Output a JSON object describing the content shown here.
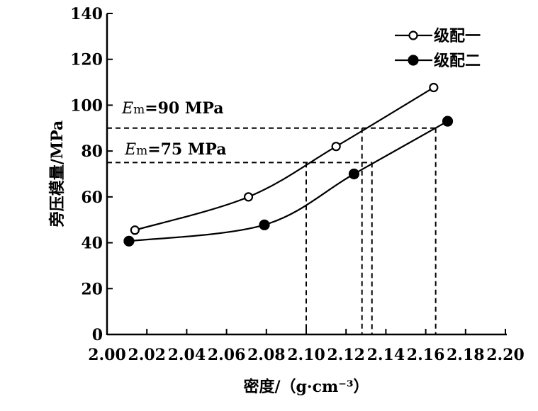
{
  "chart_data": {
    "type": "line",
    "title": "",
    "xlabel": "密度/（g·cm⁻³）",
    "ylabel": "旁压模量/MPa",
    "xlim": [
      2.0,
      2.2
    ],
    "ylim": [
      0,
      140
    ],
    "xticks": [
      "2.00",
      "2.02",
      "2.04",
      "2.06",
      "2.08",
      "2.10",
      "2.12",
      "2.14",
      "2.16",
      "2.18",
      "2.20"
    ],
    "yticks": [
      "0",
      "20",
      "40",
      "60",
      "80",
      "100",
      "120",
      "140"
    ],
    "grid": false,
    "legend_position": "top-right",
    "series": [
      {
        "name": "级配一",
        "marker": "open-circle",
        "x": [
          2.014,
          2.071,
          2.115,
          2.164
        ],
        "y": [
          45.5,
          60,
          82,
          107.7
        ]
      },
      {
        "name": "级配二",
        "marker": "filled-circle",
        "x": [
          2.011,
          2.079,
          2.124,
          2.171
        ],
        "y": [
          40.7,
          47.8,
          70,
          93
        ]
      }
    ],
    "reference_lines": [
      {
        "label_prefix": "E",
        "label_sub": "m",
        "label_value": "=90 MPa",
        "y": 90,
        "x_intersections": [
          2.128,
          2.165
        ]
      },
      {
        "label_prefix": "E",
        "label_sub": "m",
        "label_value": "=75 MPa",
        "y": 75,
        "x_intersections": [
          2.1,
          2.133
        ]
      }
    ]
  }
}
